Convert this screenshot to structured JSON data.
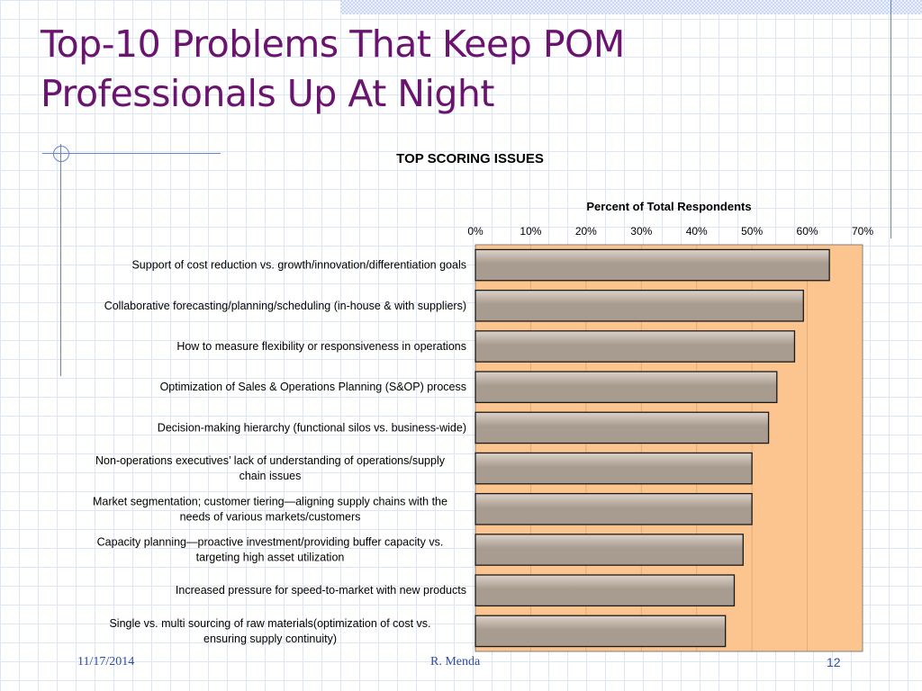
{
  "slide": {
    "title_line1": "Top-10 Problems That Keep POM",
    "title_line2": "Professionals Up At Night"
  },
  "footer": {
    "date": "11/17/2014",
    "author": "R. Menda",
    "page": "12"
  },
  "colors": {
    "title": "#6b146f",
    "plot_background": "#fcc58f",
    "bar_fill": "#a89b8f",
    "bar_highlight": "#ddd3ca",
    "bar_stroke": "#1a1a1a",
    "footer": "#2e4ba6",
    "grid_lines": "#dde6f4"
  },
  "chart_data": {
    "type": "bar",
    "orientation": "horizontal",
    "title": "TOP SCORING ISSUES",
    "xlabel": "Percent of Total Respondents",
    "ylabel": "",
    "xlim": [
      0,
      70
    ],
    "x_ticks": [
      "0%",
      "10%",
      "20%",
      "30%",
      "40%",
      "50%",
      "60%",
      "70%"
    ],
    "x_axis_position": "top",
    "grid": true,
    "legend": "none",
    "categories": [
      "Support of cost reduction vs. growth/innovation/differentiation goals",
      "Collaborative forecasting/planning/scheduling (in-house & with suppliers)",
      "How to measure flexibility or responsiveness in operations",
      "Optimization of Sales & Operations Planning (S&OP) process",
      "Decision-making hierarchy (functional silos vs. business-wide)",
      "Non-operations executives’ lack of understanding of operations/supply chain issues",
      "Market segmentation; customer tiering—aligning supply chains with the needs of various markets/customers",
      "Capacity planning—proactive investment/providing buffer capacity vs. targeting high asset utilization",
      "Increased pressure for speed-to-market with new products",
      "Single vs. multi sourcing of raw materials(optimization of cost vs. ensuring supply continuity)"
    ],
    "values": [
      64,
      59.3,
      57.7,
      54.5,
      53,
      50,
      50,
      48.4,
      46.8,
      45.2
    ]
  }
}
